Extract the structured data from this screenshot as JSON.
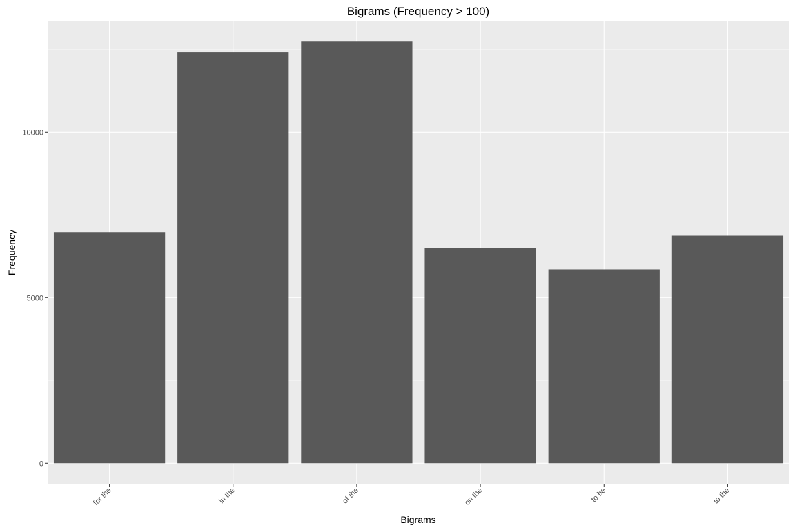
{
  "chart_data": {
    "type": "bar",
    "title": "Bigrams (Frequency > 100)",
    "xlabel": "Bigrams",
    "ylabel": "Frequency",
    "categories": [
      "for the",
      "in the",
      "of the",
      "on the",
      "to be",
      "to the"
    ],
    "values": [
      6980,
      12400,
      12730,
      6500,
      5850,
      6870
    ],
    "ylim": [
      -640,
      13360
    ],
    "yticks": [
      0,
      5000,
      10000
    ],
    "grid": true,
    "legend": "none",
    "colors": {
      "bar": "#595959",
      "panel": "#ebebeb",
      "grid_major": "#ffffff",
      "grid_minor": "#f5f5f5",
      "tick_text": "#4d4d4d"
    }
  }
}
